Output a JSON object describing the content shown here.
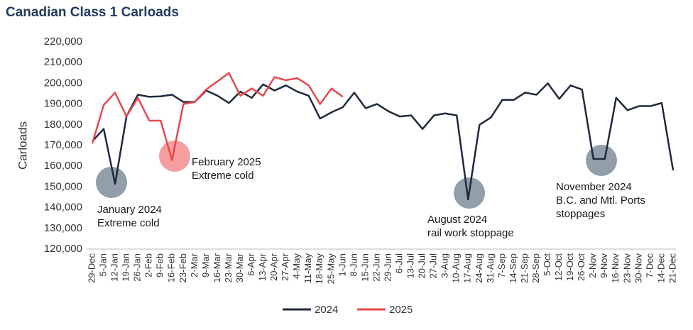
{
  "chart_data": {
    "type": "line",
    "title": "Canadian Class 1 Carloads",
    "y_label": "Carloads",
    "categories": [
      "29-Dec",
      "5-Jan",
      "12-Jan",
      "19-Jan",
      "26-Jan",
      "2-Feb",
      "9-Feb",
      "16-Feb",
      "23-Feb",
      "2-Mar",
      "9-Mar",
      "16-Mar",
      "23-Mar",
      "30-Mar",
      "6-Apr",
      "13-Apr",
      "20-Apr",
      "27-Apr",
      "4-May",
      "11-May",
      "18-May",
      "25-May",
      "1-Jun",
      "8-Jun",
      "15-Jun",
      "22-Jun",
      "29-Jun",
      "6-Jul",
      "13-Jul",
      "20-Jul",
      "27-Jul",
      "3-Aug",
      "10-Aug",
      "17-Aug",
      "24-Aug",
      "31-Aug",
      "7-Sep",
      "14-Sep",
      "21-Sep",
      "28-Sep",
      "5-Oct",
      "12-Oct",
      "19-Oct",
      "26-Oct",
      "2-Nov",
      "9-Nov",
      "16-Nov",
      "23-Nov",
      "30-Nov",
      "7-Dec",
      "14-Dec",
      "21-Dec"
    ],
    "series": [
      {
        "name": "2024",
        "color": "#1f2a3c",
        "values": [
          172000,
          178000,
          151500,
          184000,
          194500,
          193500,
          193700,
          194500,
          191000,
          191000,
          196500,
          194000,
          190500,
          196000,
          193000,
          199500,
          196500,
          199000,
          196000,
          194000,
          183000,
          186000,
          188500,
          195500,
          188000,
          190000,
          186500,
          184000,
          184500,
          178000,
          184500,
          185500,
          184500,
          144000,
          180000,
          183500,
          192000,
          192000,
          195500,
          194500,
          200000,
          192500,
          199000,
          197000,
          163500,
          163500,
          193000,
          187000,
          189000,
          189000,
          190500,
          158000
        ]
      },
      {
        "name": "2025",
        "color": "#e8474c",
        "values": [
          171000,
          189500,
          195500,
          184000,
          193000,
          182000,
          182000,
          163000,
          190000,
          191000,
          197000,
          201000,
          205000,
          194000,
          197500,
          194000,
          203000,
          201500,
          202500,
          199000,
          190000,
          197500,
          193500,
          null,
          null,
          null,
          null,
          null,
          null,
          null,
          null,
          null,
          null,
          null,
          null,
          null,
          null,
          null,
          null,
          null,
          null,
          null,
          null,
          null,
          null,
          null,
          null,
          null,
          null,
          null,
          null,
          null
        ]
      }
    ],
    "ylim": [
      120000,
      220000
    ],
    "yticks": [
      {
        "value": 120000,
        "label": "120,000"
      },
      {
        "value": 130000,
        "label": "130,000"
      },
      {
        "value": 140000,
        "label": "140,000"
      },
      {
        "value": 150000,
        "label": "150,000"
      },
      {
        "value": 160000,
        "label": "160,000"
      },
      {
        "value": 170000,
        "label": "170,000"
      },
      {
        "value": 180000,
        "label": "180,000"
      },
      {
        "value": 190000,
        "label": "190,000"
      },
      {
        "value": 200000,
        "label": "200,000"
      },
      {
        "value": 210000,
        "label": "210,000"
      },
      {
        "value": 220000,
        "label": "220,000"
      }
    ],
    "grid": false,
    "legend": "bottom",
    "annotations": [
      {
        "lines": [
          "January 2024",
          "Extreme cold"
        ]
      },
      {
        "lines": [
          "February 2025",
          "Extreme cold"
        ]
      },
      {
        "lines": [
          "August 2024",
          "rail work stoppage"
        ]
      },
      {
        "lines": [
          "November 2024",
          "B.C. and Mtl. Ports",
          "stoppages"
        ]
      }
    ]
  }
}
